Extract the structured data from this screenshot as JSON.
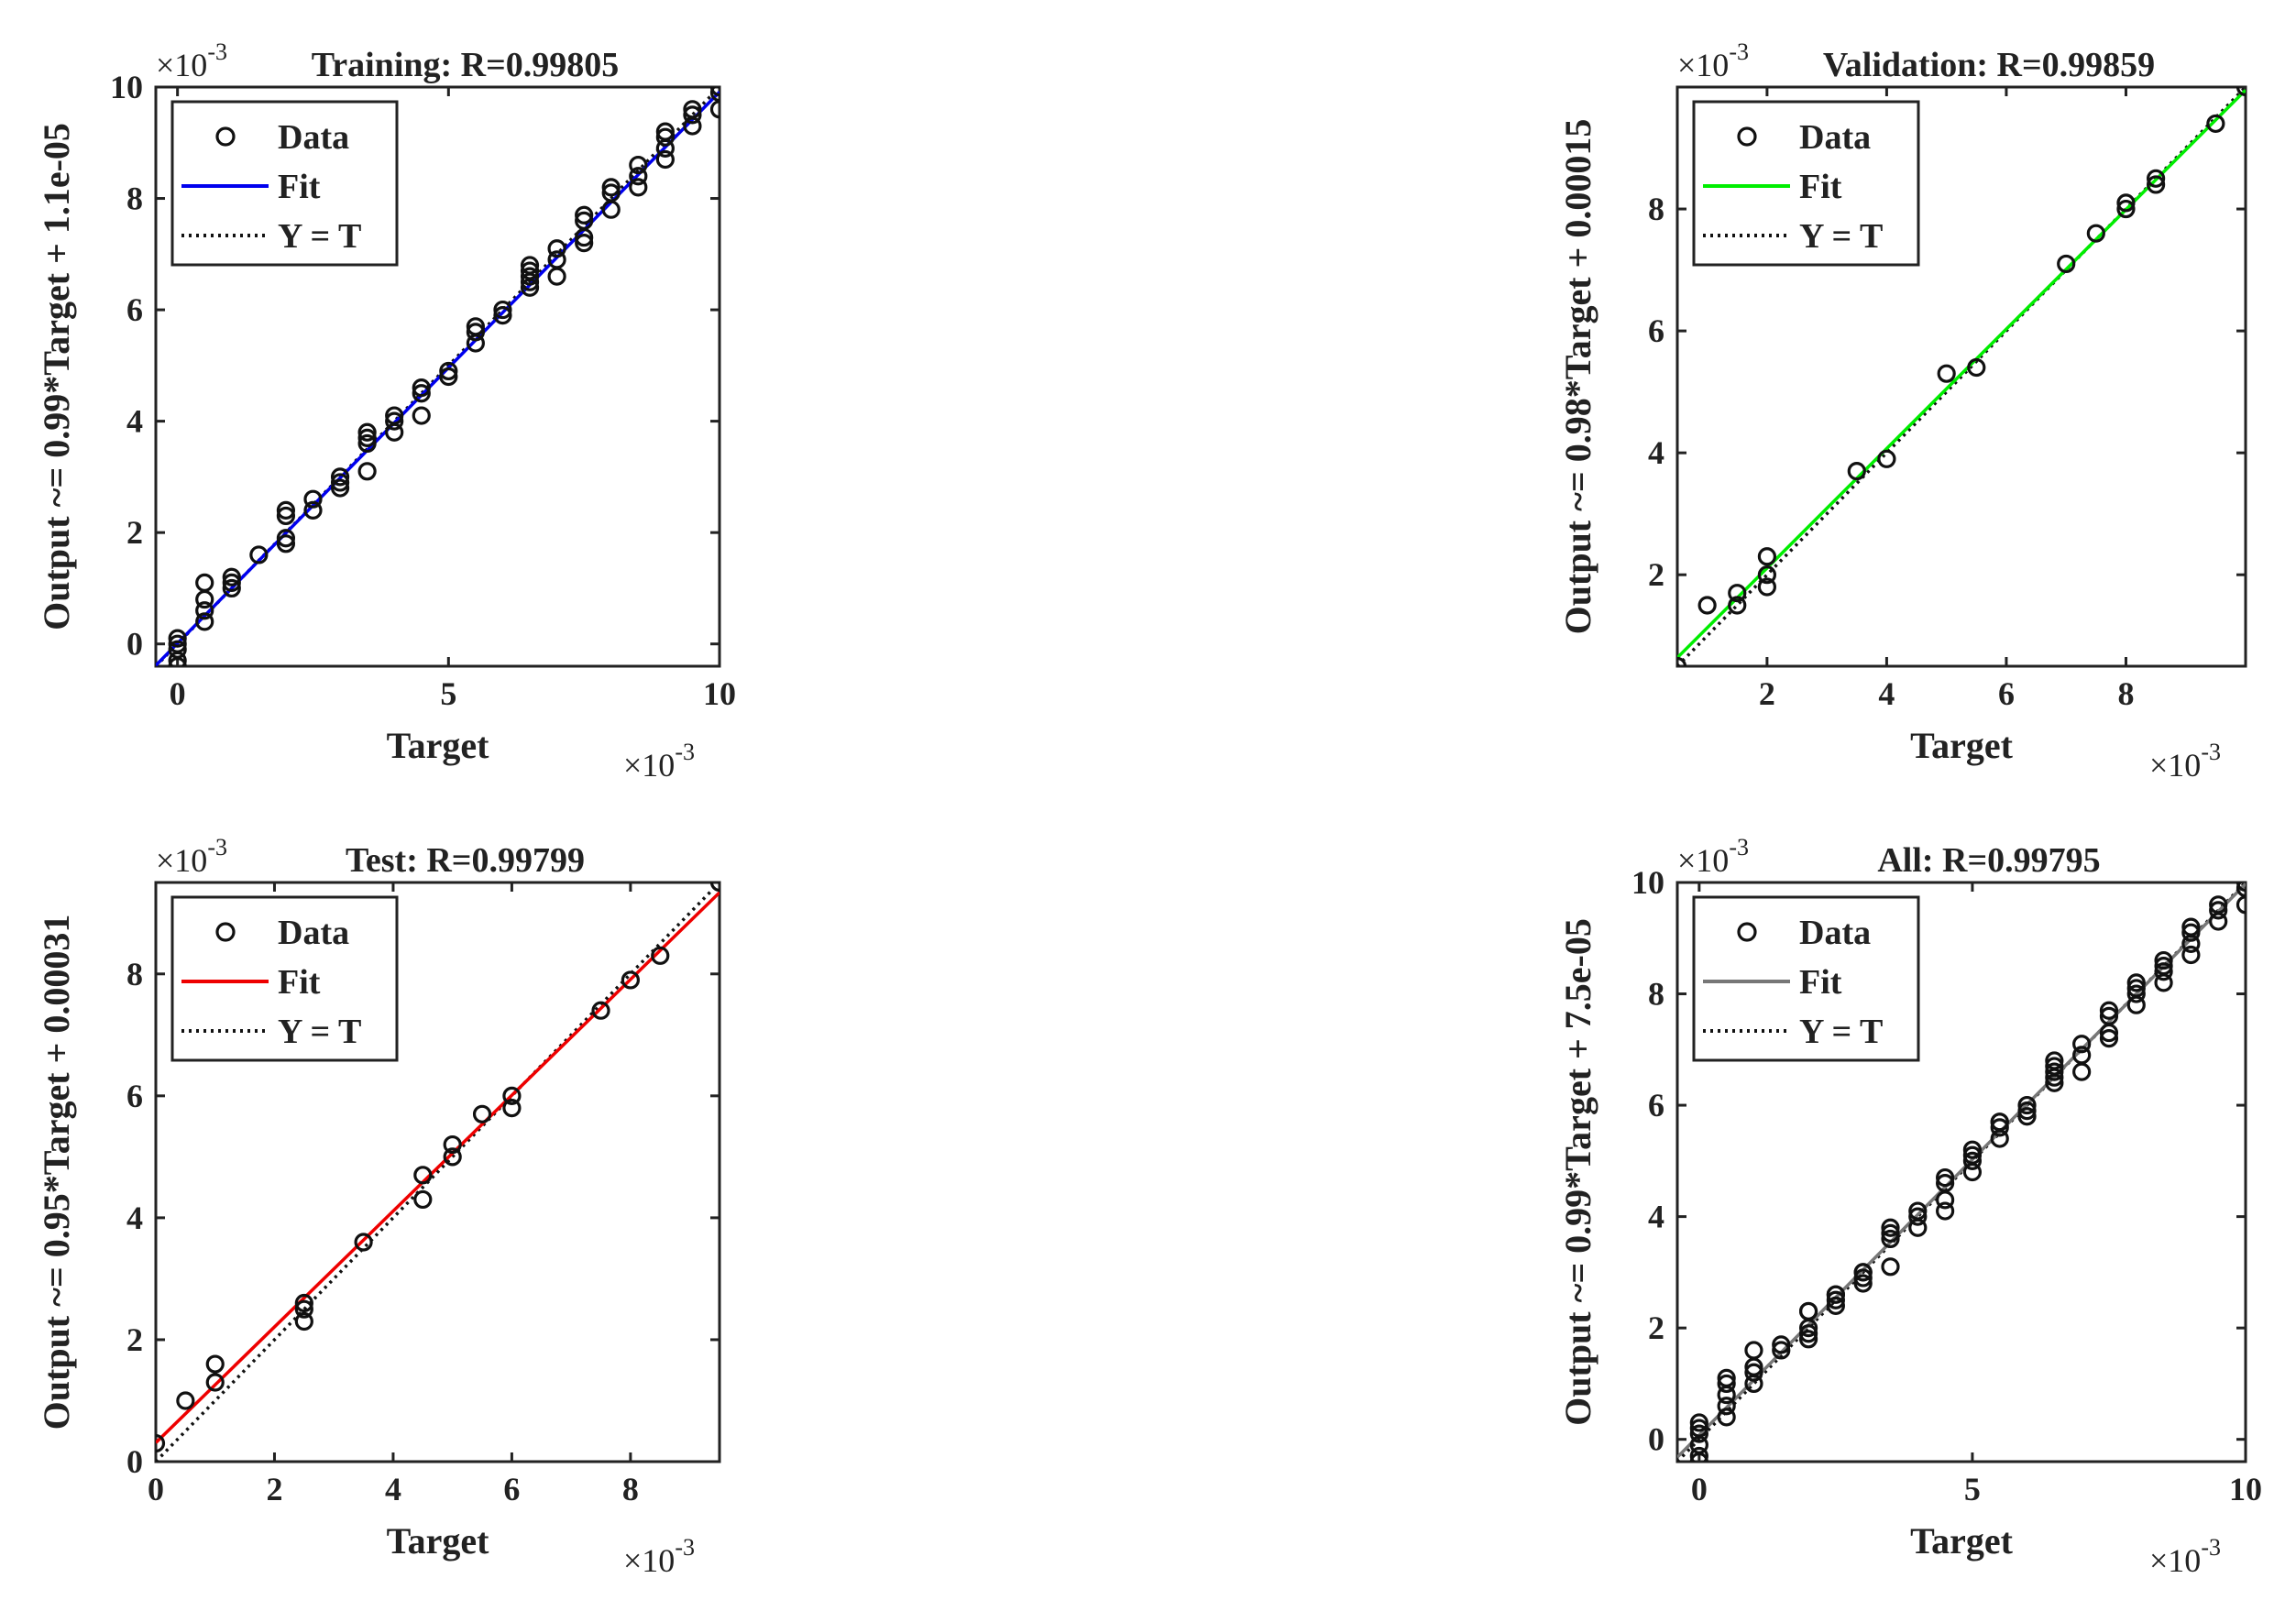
{
  "chart_data": [
    {
      "type": "scatter",
      "title": "Training: R=0.99805",
      "xlabel": "Target",
      "ylabel": "Output ~= 0.99*Target + 1.1e-05",
      "x_exponent": "×10",
      "x_exponent_power": "-3",
      "y_exponent": "×10",
      "y_exponent_power": "-3",
      "xlim": [
        -0.0004,
        0.01
      ],
      "ylim": [
        -0.0004,
        0.01
      ],
      "xticks": [
        0,
        0.005,
        0.01
      ],
      "xtick_labels": [
        "0",
        "5",
        "10"
      ],
      "yticks": [
        0,
        0.002,
        0.004,
        0.006,
        0.008,
        0.01
      ],
      "ytick_labels": [
        "0",
        "2",
        "4",
        "6",
        "8",
        "10"
      ],
      "fit": {
        "slope": 0.99,
        "intercept": 1.1e-05
      },
      "fit_color": "#0000ee",
      "legend": [
        "Data",
        "Fit",
        "Y = T"
      ],
      "legend_position": "top-left",
      "series": [
        {
          "name": "Data",
          "x": [
            0,
            0,
            0,
            0,
            0,
            0.0005,
            0.0005,
            0.0005,
            0.0005,
            0.001,
            0.001,
            0.001,
            0.0015,
            0.002,
            0.002,
            0.002,
            0.002,
            0.0025,
            0.0025,
            0.003,
            0.003,
            0.003,
            0.0035,
            0.0035,
            0.0035,
            0.0035,
            0.004,
            0.004,
            0.004,
            0.0045,
            0.0045,
            0.0045,
            0.005,
            0.005,
            0.0055,
            0.0055,
            0.0055,
            0.006,
            0.006,
            0.0065,
            0.0065,
            0.0065,
            0.0065,
            0.0065,
            0.007,
            0.007,
            0.007,
            0.0075,
            0.0075,
            0.0075,
            0.0075,
            0.008,
            0.008,
            0.008,
            0.0085,
            0.0085,
            0.0085,
            0.009,
            0.009,
            0.009,
            0.009,
            0.0095,
            0.0095,
            0.0095,
            0.01,
            0.01,
            0.01
          ],
          "y": [
            0.0001,
            -0.0001,
            -0.0003,
            -0.0004,
            0,
            0.0004,
            0.0006,
            0.0008,
            0.0011,
            0.001,
            0.0012,
            0.0011,
            0.0016,
            0.0018,
            0.0019,
            0.0023,
            0.0024,
            0.0024,
            0.0026,
            0.0028,
            0.0029,
            0.003,
            0.0031,
            0.0036,
            0.0037,
            0.0038,
            0.0038,
            0.004,
            0.0041,
            0.0041,
            0.0045,
            0.0046,
            0.0048,
            0.0049,
            0.0054,
            0.0056,
            0.0057,
            0.0059,
            0.006,
            0.0064,
            0.0065,
            0.0066,
            0.0067,
            0.0068,
            0.0066,
            0.0069,
            0.0071,
            0.0072,
            0.0073,
            0.0076,
            0.0077,
            0.0078,
            0.0081,
            0.0082,
            0.0082,
            0.0084,
            0.0086,
            0.0087,
            0.0089,
            0.0091,
            0.0092,
            0.0093,
            0.0095,
            0.0096,
            0.0096,
            0.0099,
            0.01
          ]
        }
      ]
    },
    {
      "type": "scatter",
      "title": "Validation: R=0.99859",
      "xlabel": "Target",
      "ylabel": "Output ~= 0.98*Target + 0.00015",
      "x_exponent": "×10",
      "x_exponent_power": "-3",
      "y_exponent": "×10",
      "y_exponent_power": "-3",
      "xlim": [
        0.0005,
        0.01
      ],
      "ylim": [
        0.0005,
        0.01
      ],
      "xticks": [
        0.002,
        0.004,
        0.006,
        0.008
      ],
      "xtick_labels": [
        "2",
        "4",
        "6",
        "8"
      ],
      "yticks": [
        0.002,
        0.004,
        0.006,
        0.008
      ],
      "ytick_labels": [
        "2",
        "4",
        "6",
        "8"
      ],
      "fit": {
        "slope": 0.98,
        "intercept": 0.00015
      },
      "fit_color": "#00ee00",
      "legend": [
        "Data",
        "Fit",
        "Y = T"
      ],
      "legend_position": "top-left",
      "series": [
        {
          "name": "Data",
          "x": [
            0.0005,
            0.001,
            0.0015,
            0.0015,
            0.002,
            0.002,
            0.002,
            0.0035,
            0.004,
            0.005,
            0.0055,
            0.007,
            0.0075,
            0.008,
            0.008,
            0.0085,
            0.0085,
            0.0095,
            0.01
          ],
          "y": [
            0.0005,
            0.0015,
            0.0015,
            0.0017,
            0.0018,
            0.002,
            0.0023,
            0.0037,
            0.0039,
            0.0053,
            0.0054,
            0.0071,
            0.0076,
            0.008,
            0.0081,
            0.0084,
            0.0085,
            0.0094,
            0.01
          ]
        }
      ]
    },
    {
      "type": "scatter",
      "title": "Test: R=0.99799",
      "xlabel": "Target",
      "ylabel": "Output ~= 0.95*Target + 0.00031",
      "x_exponent": "×10",
      "x_exponent_power": "-3",
      "y_exponent": "×10",
      "y_exponent_power": "-3",
      "xlim": [
        0,
        0.0095
      ],
      "ylim": [
        0,
        0.0095
      ],
      "xticks": [
        0,
        0.002,
        0.004,
        0.006,
        0.008
      ],
      "xtick_labels": [
        "0",
        "2",
        "4",
        "6",
        "8"
      ],
      "yticks": [
        0,
        0.002,
        0.004,
        0.006,
        0.008
      ],
      "ytick_labels": [
        "0",
        "2",
        "4",
        "6",
        "8"
      ],
      "fit": {
        "slope": 0.95,
        "intercept": 0.00031
      },
      "fit_color": "#ee0000",
      "legend": [
        "Data",
        "Fit",
        "Y = T"
      ],
      "legend_position": "top-left",
      "series": [
        {
          "name": "Data",
          "x": [
            0,
            0.0005,
            0.001,
            0.001,
            0.0025,
            0.0025,
            0.0025,
            0.0035,
            0.0045,
            0.0045,
            0.005,
            0.005,
            0.0055,
            0.006,
            0.006,
            0.0075,
            0.008,
            0.0085,
            0.0095
          ],
          "y": [
            0.0003,
            0.001,
            0.0013,
            0.0016,
            0.0023,
            0.0025,
            0.0026,
            0.0036,
            0.0043,
            0.0047,
            0.005,
            0.0052,
            0.0057,
            0.0058,
            0.006,
            0.0074,
            0.0079,
            0.0083,
            0.0095
          ]
        }
      ]
    },
    {
      "type": "scatter",
      "title": "All: R=0.99795",
      "xlabel": "Target",
      "ylabel": "Output ~= 0.99*Target + 7.5e-05",
      "x_exponent": "×10",
      "x_exponent_power": "-3",
      "y_exponent": "×10",
      "y_exponent_power": "-3",
      "xlim": [
        -0.0004,
        0.01
      ],
      "ylim": [
        -0.0004,
        0.01
      ],
      "xticks": [
        0,
        0.005,
        0.01
      ],
      "xtick_labels": [
        "0",
        "5",
        "10"
      ],
      "yticks": [
        0,
        0.002,
        0.004,
        0.006,
        0.008,
        0.01
      ],
      "ytick_labels": [
        "0",
        "2",
        "4",
        "6",
        "8",
        "10"
      ],
      "fit": {
        "slope": 0.99,
        "intercept": 7.5e-05
      },
      "fit_color": "#777777",
      "legend": [
        "Data",
        "Fit",
        "Y = T"
      ],
      "legend_position": "top-left",
      "series": [
        {
          "name": "Data",
          "x": [
            0,
            0,
            0,
            0,
            0,
            0,
            0.0005,
            0.0005,
            0.0005,
            0.0005,
            0.0005,
            0.001,
            0.001,
            0.001,
            0.001,
            0.0015,
            0.0015,
            0.002,
            0.002,
            0.002,
            0.002,
            0.002,
            0.0025,
            0.0025,
            0.0025,
            0.0025,
            0.003,
            0.003,
            0.003,
            0.003,
            0.0035,
            0.0035,
            0.0035,
            0.0035,
            0.004,
            0.004,
            0.004,
            0.0045,
            0.0045,
            0.0045,
            0.0045,
            0.005,
            0.005,
            0.005,
            0.005,
            0.0055,
            0.0055,
            0.0055,
            0.0055,
            0.006,
            0.006,
            0.006,
            0.0065,
            0.0065,
            0.0065,
            0.0065,
            0.0065,
            0.007,
            0.007,
            0.007,
            0.0075,
            0.0075,
            0.0075,
            0.0075,
            0.008,
            0.008,
            0.008,
            0.008,
            0.0085,
            0.0085,
            0.0085,
            0.0085,
            0.009,
            0.009,
            0.009,
            0.009,
            0.0095,
            0.0095,
            0.0095,
            0.01,
            0.01,
            0.01
          ],
          "y": [
            0.0003,
            0.0001,
            -0.0001,
            -0.0003,
            -0.0004,
            0.0002,
            0.0004,
            0.0006,
            0.0008,
            0.001,
            0.0011,
            0.001,
            0.0012,
            0.0013,
            0.0016,
            0.0016,
            0.0017,
            0.0018,
            0.0019,
            0.002,
            0.0023,
            0.0023,
            0.0024,
            0.0025,
            0.0026,
            0.0026,
            0.0028,
            0.0029,
            0.003,
            0.003,
            0.0031,
            0.0036,
            0.0037,
            0.0038,
            0.0038,
            0.004,
            0.0041,
            0.0041,
            0.0043,
            0.0046,
            0.0047,
            0.0048,
            0.005,
            0.0051,
            0.0052,
            0.0054,
            0.0056,
            0.0057,
            0.0057,
            0.0058,
            0.0059,
            0.006,
            0.0064,
            0.0065,
            0.0066,
            0.0067,
            0.0068,
            0.0066,
            0.0069,
            0.0071,
            0.0072,
            0.0073,
            0.0076,
            0.0077,
            0.0078,
            0.008,
            0.0081,
            0.0082,
            0.0082,
            0.0084,
            0.0085,
            0.0086,
            0.0087,
            0.0089,
            0.0091,
            0.0092,
            0.0093,
            0.0095,
            0.0096,
            0.0096,
            0.0099,
            0.01
          ]
        }
      ]
    }
  ]
}
